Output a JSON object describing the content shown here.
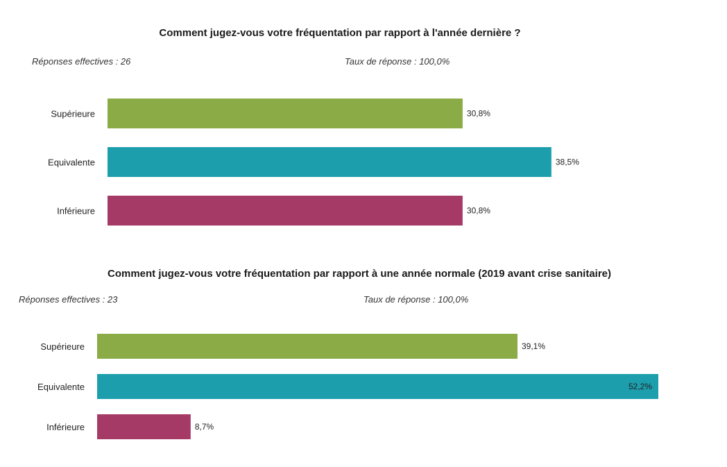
{
  "colors": {
    "superieure": "#8aab45",
    "equivalente": "#1c9eac",
    "inferieure": "#a63a67"
  },
  "chart_data": [
    {
      "type": "bar",
      "orientation": "horizontal",
      "title": "Comment jugez-vous votre fréquentation par rapport à l'année dernière ?",
      "responses_label": "Réponses effectives : 26",
      "rate_label": "Taux de réponse : 100,0%",
      "categories": [
        "Supérieure",
        "Equivalente",
        "Inférieure"
      ],
      "values": [
        30.8,
        38.5,
        30.8
      ],
      "value_labels": [
        "30,8%",
        "38,5%",
        "30,8%"
      ],
      "xlim": [
        0,
        50
      ]
    },
    {
      "type": "bar",
      "orientation": "horizontal",
      "title": "Comment jugez-vous votre fréquentation par rapport à une année normale (2019 avant crise sanitaire)",
      "responses_label": "Réponses effectives : 23",
      "rate_label": "Taux de réponse : 100,0%",
      "categories": [
        "Supérieure",
        "Equivalente",
        "Inférieure"
      ],
      "values": [
        39.1,
        52.2,
        8.7
      ],
      "value_labels": [
        "39,1%",
        "52,2%",
        "8,7%"
      ],
      "xlim": [
        0,
        52.2
      ]
    }
  ]
}
